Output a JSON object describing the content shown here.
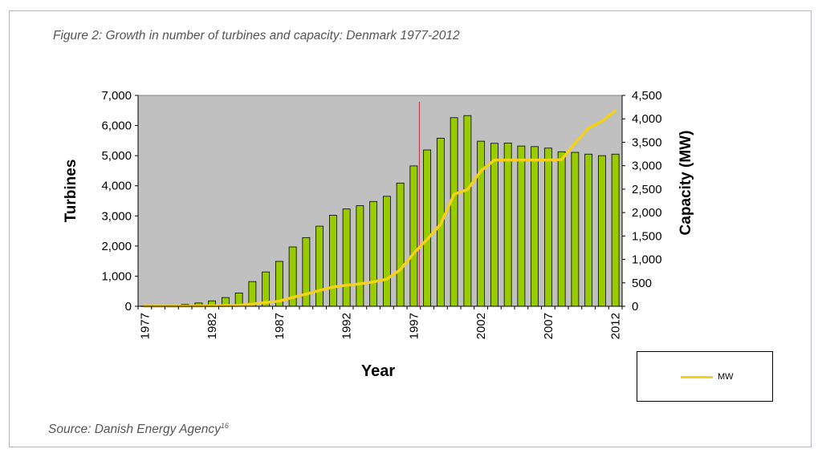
{
  "figure": {
    "title": "Figure 2: Growth in number of turbines and capacity: Denmark 1977-2012",
    "source": "Source: Danish Energy Agency",
    "source_footnote": "16"
  },
  "colors": {
    "plot_background": "#c0c0c0",
    "bar_fill": "#99cc00",
    "bar_stroke": "#000000",
    "line": "#f4d21a",
    "marker_line": "#cc2244"
  },
  "chart_data": {
    "type": "bar",
    "xlabel": "Year",
    "ylabel": "Turbines",
    "y2label": "Capacity (MW)",
    "ylim": [
      0,
      7000
    ],
    "y2lim": [
      0,
      4500
    ],
    "yticks": [
      "0",
      "1,000",
      "2,000",
      "3,000",
      "4,000",
      "5,000",
      "6,000",
      "7,000"
    ],
    "y2ticks": [
      "0",
      "500",
      "1,000",
      "1,500",
      "2,000",
      "2,500",
      "3,000",
      "3,500",
      "4,000",
      "4,500"
    ],
    "xtick_labels": [
      "1977",
      "1982",
      "1987",
      "1992",
      "1997",
      "2002",
      "2007",
      "2012"
    ],
    "legend_position": "below-right",
    "x": [
      1977,
      1978,
      1979,
      1980,
      1981,
      1982,
      1983,
      1984,
      1985,
      1986,
      1987,
      1988,
      1989,
      1990,
      1991,
      1992,
      1993,
      1994,
      1995,
      1996,
      1997,
      1998,
      1999,
      2000,
      2001,
      2002,
      2003,
      2004,
      2005,
      2006,
      2007,
      2008,
      2009,
      2010,
      2011,
      2012
    ],
    "series": [
      {
        "type": "bar",
        "axis": "left",
        "values": [
          5,
          10,
          30,
          60,
          110,
          180,
          290,
          440,
          820,
          1140,
          1490,
          1970,
          2280,
          2660,
          3020,
          3230,
          3340,
          3480,
          3650,
          4090,
          4660,
          5190,
          5580,
          6260,
          6330,
          5480,
          5410,
          5420,
          5320,
          5300,
          5250,
          5130,
          5110,
          5050,
          5000,
          5050
        ]
      },
      {
        "type": "line",
        "axis": "right",
        "name": "MW",
        "values": [
          0,
          0,
          1,
          3,
          5,
          10,
          15,
          20,
          50,
          80,
          110,
          190,
          260,
          340,
          410,
          450,
          480,
          520,
          580,
          780,
          1130,
          1430,
          1750,
          2390,
          2490,
          2890,
          3120,
          3120,
          3120,
          3120,
          3120,
          3130,
          3480,
          3800,
          3950,
          4170
        ]
      }
    ]
  }
}
